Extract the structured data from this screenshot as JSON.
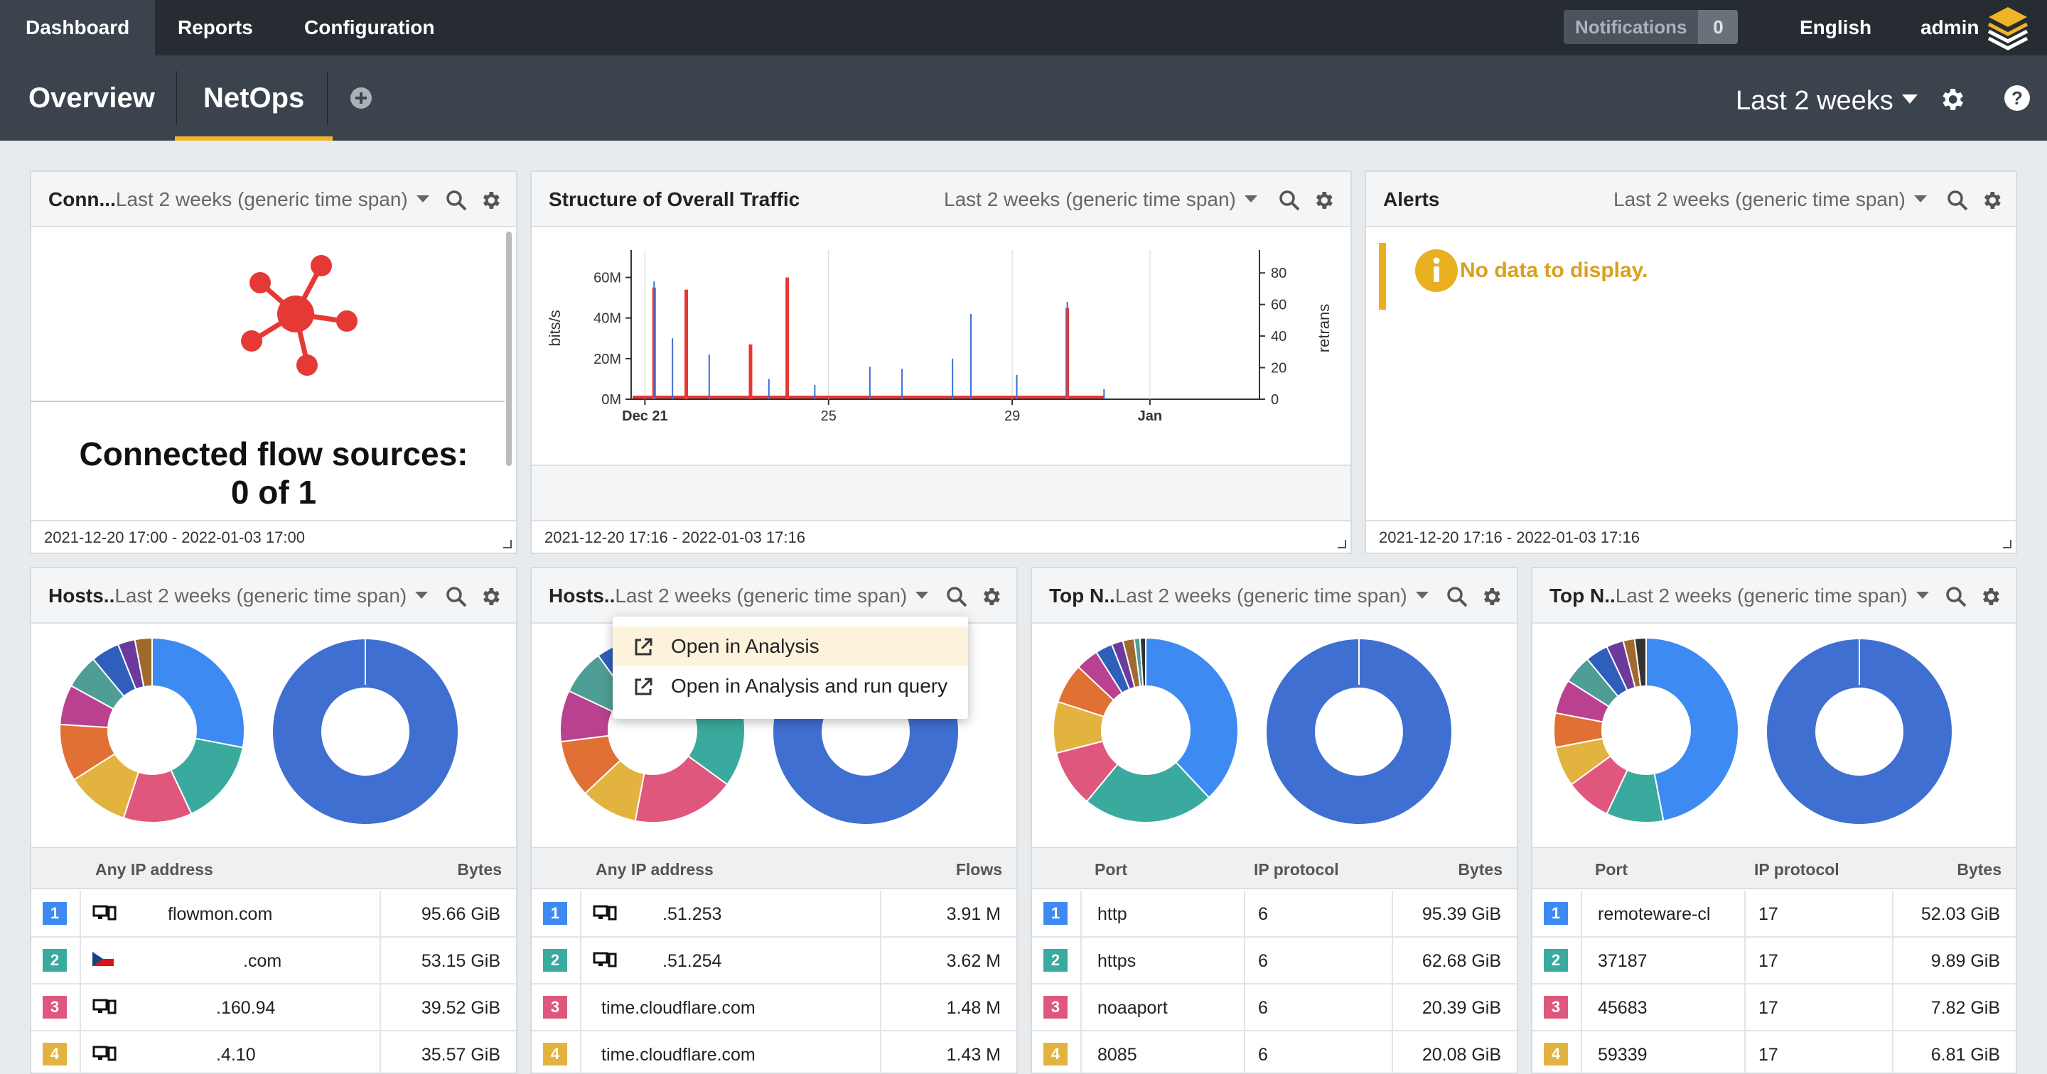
{
  "topnav": {
    "dashboard": "Dashboard",
    "reports": "Reports",
    "configuration": "Configuration",
    "notifications_label": "Notifications",
    "notifications_count": "0",
    "language": "English",
    "user": "admin"
  },
  "subnav": {
    "tabs": [
      "Overview",
      "NetOps"
    ],
    "time_range": "Last 2 weeks"
  },
  "colors": {
    "topbar": "#262c32",
    "subbar": "#3b444c",
    "accent": "#f0b429",
    "traffic_red": "#e53935",
    "traffic_blue": "#3f6fd1"
  },
  "widgets": {
    "connected": {
      "title": "Conn...",
      "range": "Last 2 weeks (generic time span)",
      "text_line1": "Connected flow sources:",
      "text_line2": "0 of 1",
      "footer": "2021-12-20 17:00 - 2022-01-03 17:00"
    },
    "traffic": {
      "title": "Structure of Overall Traffic",
      "range": "Last 2 weeks (generic time span)",
      "footer": "2021-12-20 17:16 - 2022-01-03 17:16"
    },
    "alerts": {
      "title": "Alerts",
      "range": "Last 2 weeks (generic time span)",
      "message": "No data to display.",
      "footer": "2021-12-20 17:16 - 2022-01-03 17:16"
    },
    "hosts_bytes": {
      "title": "Hosts..",
      "range": "Last 2 weeks (generic time span)",
      "col1": "Any IP address",
      "col2": "Bytes",
      "rows": [
        {
          "rank": "1",
          "host": "flowmon.com",
          "value": "95.66 GiB"
        },
        {
          "rank": "2",
          "host": ".com",
          "value": "53.15 GiB"
        },
        {
          "rank": "3",
          "host": ".160.94",
          "value": "39.52 GiB"
        },
        {
          "rank": "4",
          "host": ".4.10",
          "value": "35.57 GiB"
        }
      ]
    },
    "hosts_flows": {
      "title": "Hosts..",
      "range": "Last 2 weeks (generic time span)",
      "col1": "Any IP address",
      "col2": "Flows",
      "rows": [
        {
          "rank": "1",
          "host": ".51.253",
          "value": "3.91 M"
        },
        {
          "rank": "2",
          "host": ".51.254",
          "value": "3.62 M"
        },
        {
          "rank": "3",
          "host": "time.cloudflare.com",
          "value": "1.48 M"
        },
        {
          "rank": "4",
          "host": "time.cloudflare.com",
          "value": "1.43 M"
        }
      ]
    },
    "top_ports": {
      "title": "Top N..",
      "range": "Last 2 weeks (generic time span)",
      "col1": "Port",
      "col2": "IP protocol",
      "col3": "Bytes",
      "rows": [
        {
          "rank": "1",
          "port": "http",
          "proto": "6",
          "value": "95.39 GiB"
        },
        {
          "rank": "2",
          "port": "https",
          "proto": "6",
          "value": "62.68 GiB"
        },
        {
          "rank": "3",
          "port": "noaaport",
          "proto": "6",
          "value": "20.39 GiB"
        },
        {
          "rank": "4",
          "port": "8085",
          "proto": "6",
          "value": "20.08 GiB"
        }
      ]
    },
    "top_ports_udp": {
      "title": "Top N..",
      "range": "Last 2 weeks (generic time span)",
      "col1": "Port",
      "col2": "IP protocol",
      "col3": "Bytes",
      "rows": [
        {
          "rank": "1",
          "port": "remoteware-cl",
          "proto": "17",
          "value": "52.03 GiB"
        },
        {
          "rank": "2",
          "port": "37187",
          "proto": "17",
          "value": "9.89 GiB"
        },
        {
          "rank": "3",
          "port": "45683",
          "proto": "17",
          "value": "7.82 GiB"
        },
        {
          "rank": "4",
          "port": "59339",
          "proto": "17",
          "value": "6.81 GiB"
        }
      ]
    }
  },
  "context_menu": {
    "item1": "Open in Analysis",
    "item2": "Open in Analysis and run query"
  },
  "rank_colors": [
    "#3d8bf2",
    "#3aaa9e",
    "#e0577d",
    "#e2b33f"
  ],
  "chart_data": {
    "type": "line",
    "title": "",
    "xlabel": "",
    "ylabel": "bits/s",
    "y2label": "retrans",
    "x_ticks": [
      "Dec 21",
      "25",
      "29",
      "Jan"
    ],
    "y_ticks": [
      "0M",
      "20M",
      "40M",
      "60M"
    ],
    "y2_ticks": [
      "0",
      "20",
      "40",
      "60",
      "80"
    ],
    "ylim": [
      0,
      70
    ],
    "y2lim": [
      0,
      90
    ],
    "x_range_days": [
      20.7,
      34.2
    ],
    "series": [
      {
        "color": "#e53935",
        "spikes": [
          [
            21.2,
            55
          ],
          [
            21.9,
            54
          ],
          [
            23.3,
            27
          ],
          [
            24.1,
            60
          ],
          [
            30.2,
            45
          ]
        ]
      },
      {
        "color": "#3f6fd1",
        "spikes": [
          [
            21.2,
            58
          ],
          [
            21.6,
            30
          ],
          [
            22.4,
            22
          ],
          [
            23.7,
            10
          ],
          [
            24.7,
            7
          ],
          [
            25.9,
            16
          ],
          [
            26.6,
            15
          ],
          [
            27.7,
            20
          ],
          [
            28.1,
            42
          ],
          [
            29.1,
            12
          ],
          [
            30.2,
            48
          ],
          [
            31.0,
            5
          ]
        ]
      }
    ]
  }
}
